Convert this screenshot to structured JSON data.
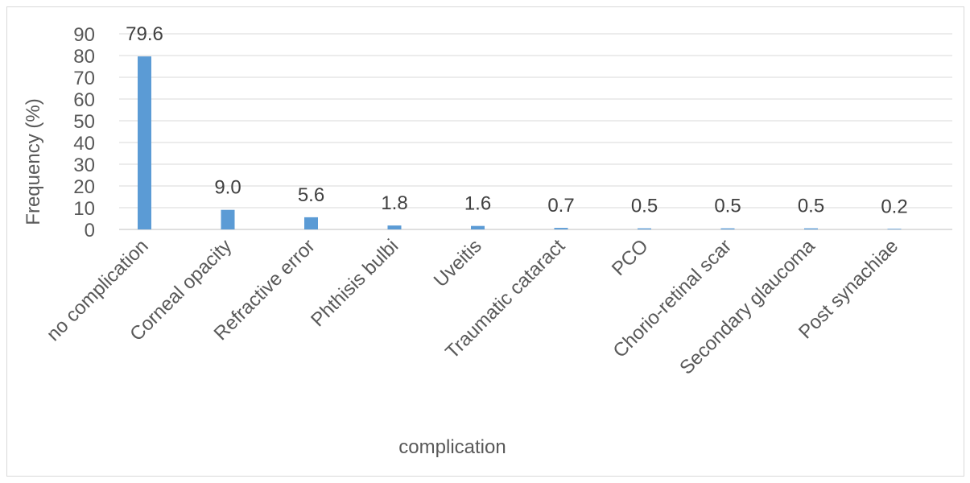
{
  "chart_data": {
    "type": "bar",
    "title": "",
    "xlabel": "complication",
    "ylabel": "Frequency (%)",
    "ylim": [
      0,
      90
    ],
    "yticks": [
      0,
      10,
      20,
      30,
      40,
      50,
      60,
      70,
      80,
      90
    ],
    "grid": true,
    "legend": "none",
    "bar_color": "#5b9bd5",
    "categories": [
      "no complication",
      "Corneal opacity",
      "Refractive error",
      "Phthisis bulbi",
      "Uveitis",
      "Traumatic cataract",
      "PCO",
      "Chorio-retinal scar",
      "Secondary glaucoma",
      "Post synachiae"
    ],
    "values": [
      79.6,
      9.0,
      5.6,
      1.8,
      1.6,
      0.7,
      0.5,
      0.5,
      0.5,
      0.2
    ],
    "data_labels": [
      "79.6",
      "9.0",
      "5.6",
      "1.8",
      "1.6",
      "0.7",
      "0.5",
      "0.5",
      "0.5",
      "0.2"
    ]
  }
}
